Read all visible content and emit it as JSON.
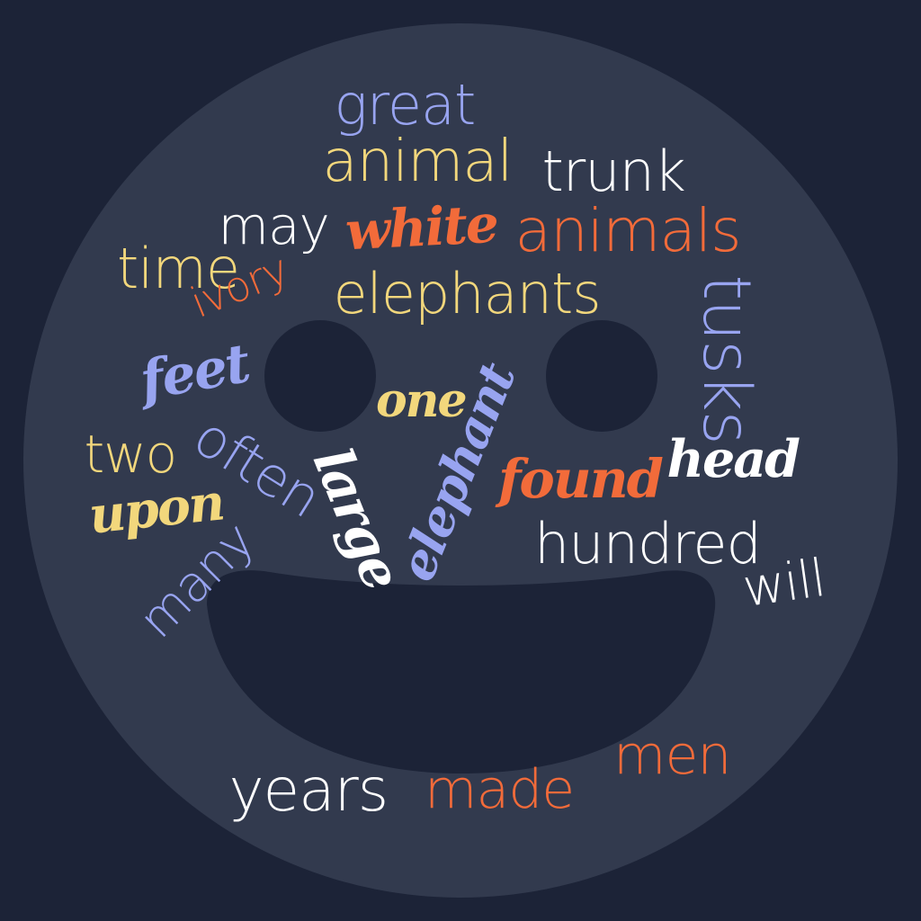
{
  "palette": {
    "background": "#1c2337",
    "face": "#323a4e",
    "features": "#1c2337",
    "cream": "#f2d77c",
    "orange": "#f26b3a",
    "lavender": "#98a4f0",
    "white": "#ffffff"
  },
  "words": [
    {
      "text": "great",
      "color": "lavender",
      "style": "sans"
    },
    {
      "text": "animal",
      "color": "cream",
      "style": "sans"
    },
    {
      "text": "trunk",
      "color": "white",
      "style": "sans"
    },
    {
      "text": "may",
      "color": "white",
      "style": "sans"
    },
    {
      "text": "white",
      "color": "orange",
      "style": "script"
    },
    {
      "text": "animals",
      "color": "orange",
      "style": "sans"
    },
    {
      "text": "time",
      "color": "cream",
      "style": "sans"
    },
    {
      "text": "ivory",
      "color": "orange",
      "style": "sans"
    },
    {
      "text": "elephants",
      "color": "cream",
      "style": "sans"
    },
    {
      "text": "tusks",
      "color": "lavender",
      "style": "sans"
    },
    {
      "text": "feet",
      "color": "lavender",
      "style": "script"
    },
    {
      "text": "one",
      "color": "cream",
      "style": "script"
    },
    {
      "text": "elephant",
      "color": "lavender",
      "style": "script"
    },
    {
      "text": "two",
      "color": "cream",
      "style": "sans"
    },
    {
      "text": "often",
      "color": "lavender",
      "style": "sans"
    },
    {
      "text": "large",
      "color": "white",
      "style": "script"
    },
    {
      "text": "found",
      "color": "orange",
      "style": "script"
    },
    {
      "text": "head",
      "color": "white",
      "style": "script"
    },
    {
      "text": "upon",
      "color": "cream",
      "style": "script"
    },
    {
      "text": "many",
      "color": "lavender",
      "style": "sans"
    },
    {
      "text": "hundred",
      "color": "white",
      "style": "sans"
    },
    {
      "text": "will",
      "color": "white",
      "style": "sans"
    },
    {
      "text": "men",
      "color": "orange",
      "style": "sans"
    },
    {
      "text": "years",
      "color": "white",
      "style": "sans"
    },
    {
      "text": "made",
      "color": "orange",
      "style": "sans"
    }
  ]
}
